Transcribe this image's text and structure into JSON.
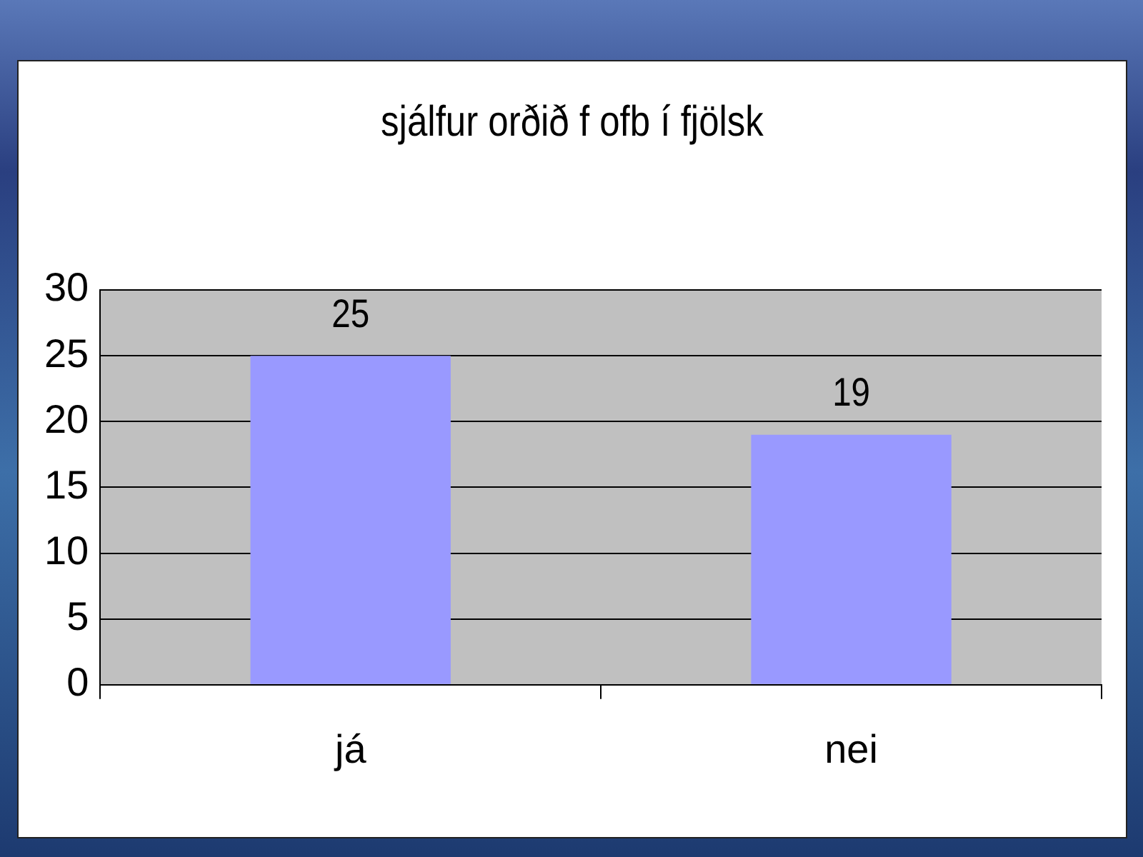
{
  "chart_data": {
    "type": "bar",
    "title": "sjálfur orðið f ofb í fjölsk",
    "categories": [
      "já",
      "nei"
    ],
    "values": [
      25,
      19
    ],
    "color": "#9999ff",
    "ylim": [
      0,
      30
    ],
    "yticks": [
      0,
      5,
      10,
      15,
      20,
      25,
      30
    ],
    "grid": "y",
    "data_labels": true
  }
}
